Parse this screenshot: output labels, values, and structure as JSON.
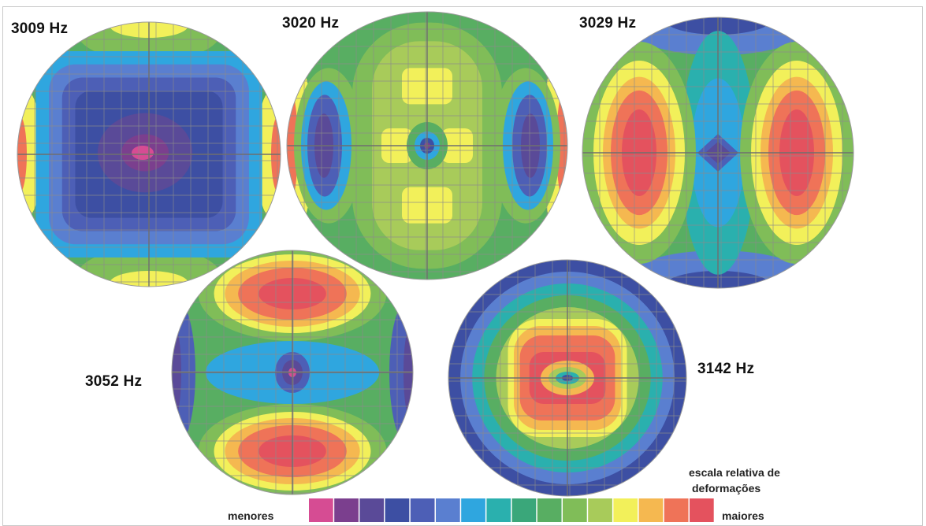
{
  "modes": [
    {
      "label": "3009 Hz",
      "pattern": "center"
    },
    {
      "label": "3020 Hz",
      "pattern": "three-lobes-vertical"
    },
    {
      "label": "3029 Hz",
      "pattern": "side-lobes"
    },
    {
      "label": "3052 Hz",
      "pattern": "top-bottom-lobes"
    },
    {
      "label": "3142 Hz",
      "pattern": "ring"
    }
  ],
  "scale": {
    "title_line1": "escala relativa de",
    "title_line2": "deformações",
    "min_label": "menores",
    "max_label": "maiores",
    "colors": [
      "#d64c93",
      "#7b3f8e",
      "#5a4a98",
      "#3d4fa3",
      "#4d5fb6",
      "#5a7fd0",
      "#2fa6df",
      "#2ab0ae",
      "#3aa77a",
      "#58ae62",
      "#80bd58",
      "#a8cb5a",
      "#f2f05a",
      "#f5b850",
      "#ef7358",
      "#e4525e"
    ]
  }
}
